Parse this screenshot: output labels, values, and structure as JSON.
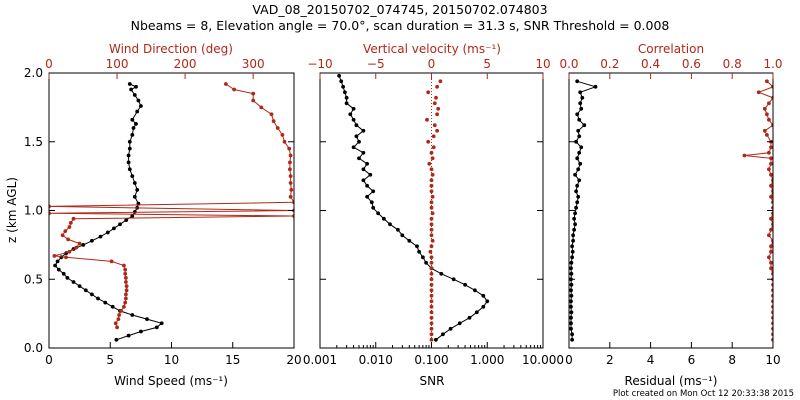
{
  "title_line1": "VAD_08_20150702_074745, 20150702.074803",
  "title_line2": "Nbeams = 8, Elevation angle = 70.0°, scan duration = 31.3 s, SNR Threshold = 0.008",
  "footer": "Plot created on Mon Oct 12 20:33:38 2015",
  "colors": {
    "black": "#000000",
    "red": "#b02818"
  },
  "chart_data": [
    {
      "type": "line",
      "panel": "wind",
      "ylabel": "z (km AGL)",
      "ylim": [
        0,
        2
      ],
      "yticks": [
        "0.0",
        "0.5",
        "1.0",
        "1.5",
        "2.0"
      ],
      "bottom_axis": {
        "label": "Wind Speed (ms⁻¹)",
        "range": [
          0,
          20
        ],
        "ticks": [
          "0",
          "5",
          "10",
          "15",
          "20"
        ]
      },
      "top_axis": {
        "label": "Wind Direction (deg)",
        "range": [
          0,
          360
        ],
        "ticks": [
          "0",
          "100",
          "200",
          "300"
        ]
      },
      "series": [
        {
          "name": "Wind Speed",
          "axis": "bottom",
          "color": "#000000",
          "z": [
            0.06,
            0.09,
            0.12,
            0.15,
            0.18,
            0.21,
            0.24,
            0.27,
            0.3,
            0.33,
            0.36,
            0.39,
            0.42,
            0.45,
            0.48,
            0.51,
            0.54,
            0.57,
            0.6,
            0.63,
            0.66,
            0.69,
            0.72,
            0.75,
            0.78,
            0.81,
            0.84,
            0.87,
            0.9,
            0.93,
            0.96,
            0.99,
            1.02,
            1.05,
            1.1,
            1.15,
            1.2,
            1.25,
            1.3,
            1.35,
            1.4,
            1.45,
            1.5,
            1.55,
            1.6,
            1.63,
            1.66,
            1.72,
            1.76,
            1.8,
            1.84,
            1.88,
            1.9,
            1.92
          ],
          "values": [
            5.5,
            6.5,
            7.5,
            8.8,
            9.2,
            8.0,
            6.8,
            5.8,
            5.2,
            4.6,
            4.0,
            3.5,
            3.0,
            2.5,
            2.0,
            1.5,
            1.2,
            0.8,
            0.5,
            0.7,
            1.0,
            1.4,
            2.0,
            2.8,
            3.5,
            4.2,
            4.8,
            5.3,
            5.8,
            6.3,
            6.8,
            7.0,
            7.2,
            7.3,
            7.0,
            7.2,
            7.0,
            6.8,
            6.6,
            6.5,
            6.5,
            6.6,
            6.6,
            6.8,
            6.9,
            7.1,
            6.8,
            7.2,
            7.5,
            7.3,
            7.0,
            6.7,
            7.1,
            6.6
          ]
        },
        {
          "name": "Wind Direction",
          "axis": "top",
          "color": "#b02818",
          "z": [
            0.15,
            0.18,
            0.21,
            0.24,
            0.27,
            0.3,
            0.33,
            0.36,
            0.39,
            0.42,
            0.45,
            0.48,
            0.51,
            0.54,
            0.57,
            0.6,
            0.63,
            0.66,
            0.67,
            0.7,
            0.73,
            0.76,
            0.79,
            0.82,
            0.85,
            0.88,
            0.91,
            0.94,
            0.96,
            0.98,
            1.0,
            1.03,
            1.06,
            1.1,
            1.15,
            1.2,
            1.25,
            1.3,
            1.35,
            1.4,
            1.45,
            1.5,
            1.55,
            1.6,
            1.65,
            1.7,
            1.75,
            1.8,
            1.85,
            1.88,
            1.92
          ],
          "values": [
            100,
            98,
            102,
            103,
            106,
            110,
            112,
            113,
            113,
            114,
            114,
            113,
            113,
            112,
            112,
            110,
            92,
            25,
            8,
            30,
            40,
            45,
            28,
            20,
            24,
            30,
            32,
            36,
            360,
            0,
            360,
            0,
            360,
            355,
            356,
            355,
            355,
            354,
            354,
            355,
            353,
            346,
            343,
            336,
            330,
            327,
            312,
            300,
            300,
            272,
            260
          ]
        }
      ]
    },
    {
      "type": "scatter",
      "panel": "vertical",
      "bottom_axis": {
        "label": "SNR",
        "scale": "log",
        "range": [
          0.001,
          10
        ],
        "ticks": [
          "0.001",
          "0.010",
          "0.100",
          "1.000",
          "10.000"
        ]
      },
      "top_axis": {
        "label": "Vertical velocity (ms⁻¹)",
        "range": [
          -10,
          10
        ],
        "ticks": [
          "−10",
          "−5",
          "0",
          "5",
          "10"
        ]
      },
      "series": [
        {
          "name": "SNR",
          "axis": "bottom",
          "color": "#000000",
          "z": [
            0.06,
            0.1,
            0.14,
            0.18,
            0.22,
            0.26,
            0.3,
            0.34,
            0.38,
            0.42,
            0.46,
            0.5,
            0.54,
            0.58,
            0.62,
            0.66,
            0.7,
            0.74,
            0.78,
            0.82,
            0.86,
            0.9,
            0.94,
            0.98,
            1.02,
            1.06,
            1.1,
            1.14,
            1.18,
            1.22,
            1.26,
            1.3,
            1.34,
            1.38,
            1.42,
            1.46,
            1.5,
            1.54,
            1.58,
            1.62,
            1.66,
            1.7,
            1.74,
            1.78,
            1.82,
            1.86,
            1.9,
            1.94,
            1.98
          ],
          "values": [
            0.12,
            0.16,
            0.22,
            0.32,
            0.48,
            0.65,
            0.85,
            1.0,
            0.85,
            0.6,
            0.4,
            0.25,
            0.15,
            0.1,
            0.08,
            0.07,
            0.06,
            0.055,
            0.04,
            0.03,
            0.025,
            0.018,
            0.014,
            0.011,
            0.009,
            0.0085,
            0.007,
            0.009,
            0.007,
            0.006,
            0.008,
            0.006,
            0.007,
            0.005,
            0.006,
            0.004,
            0.005,
            0.0045,
            0.006,
            0.0045,
            0.004,
            0.0035,
            0.004,
            0.003,
            0.003,
            0.0028,
            0.0026,
            0.0024,
            0.0022
          ]
        },
        {
          "name": "Vertical velocity",
          "axis": "top",
          "color": "#b02818",
          "z": [
            0.06,
            0.1,
            0.14,
            0.18,
            0.22,
            0.26,
            0.3,
            0.34,
            0.38,
            0.42,
            0.46,
            0.5,
            0.54,
            0.58,
            0.62,
            0.66,
            0.7,
            0.74,
            0.78,
            0.82,
            0.86,
            0.9,
            0.94,
            0.98,
            1.02,
            1.06,
            1.1,
            1.14,
            1.18,
            1.22,
            1.26,
            1.3,
            1.34,
            1.38,
            1.42,
            1.46,
            1.5,
            1.54,
            1.58,
            1.62,
            1.66,
            1.7,
            1.74,
            1.78,
            1.82,
            1.86,
            1.9,
            1.94
          ],
          "values": [
            0,
            0,
            0,
            0,
            0,
            0,
            0,
            0,
            0,
            0,
            0,
            0,
            0,
            0,
            0,
            0,
            -0.1,
            0,
            0.1,
            0,
            0,
            0,
            0,
            0.1,
            0,
            0,
            0.1,
            0,
            0,
            0,
            0.1,
            0,
            -0.2,
            0.1,
            0,
            0.2,
            -0.3,
            0.2,
            0.5,
            0.3,
            -0.4,
            0.5,
            0.6,
            0.3,
            0.4,
            -0.3,
            0.5,
            0.8
          ]
        }
      ]
    },
    {
      "type": "line",
      "panel": "quality",
      "bottom_axis": {
        "label": "Residual (ms⁻¹)",
        "range": [
          0,
          10
        ],
        "ticks": [
          "0",
          "2",
          "4",
          "6",
          "8",
          "10"
        ]
      },
      "top_axis": {
        "label": "Correlation",
        "range": [
          0,
          1
        ],
        "ticks": [
          "0.0",
          "0.2",
          "0.4",
          "0.6",
          "0.8",
          "1.0"
        ]
      },
      "series": [
        {
          "name": "Residual",
          "axis": "bottom",
          "color": "#000000",
          "z": [
            0.06,
            0.1,
            0.14,
            0.18,
            0.22,
            0.26,
            0.3,
            0.34,
            0.38,
            0.42,
            0.46,
            0.5,
            0.54,
            0.58,
            0.62,
            0.66,
            0.7,
            0.74,
            0.78,
            0.82,
            0.86,
            0.9,
            0.94,
            0.98,
            1.02,
            1.06,
            1.1,
            1.14,
            1.18,
            1.22,
            1.26,
            1.3,
            1.34,
            1.38,
            1.42,
            1.46,
            1.5,
            1.54,
            1.58,
            1.62,
            1.66,
            1.7,
            1.74,
            1.78,
            1.82,
            1.86,
            1.9,
            1.94
          ],
          "values": [
            0.15,
            0.15,
            0.1,
            0.1,
            0.1,
            0.12,
            0.1,
            0.1,
            0.12,
            0.1,
            0.12,
            0.1,
            0.12,
            0.1,
            0.12,
            0.15,
            0.18,
            0.15,
            0.2,
            0.2,
            0.25,
            0.3,
            0.25,
            0.3,
            0.35,
            0.4,
            0.45,
            0.35,
            0.4,
            0.5,
            0.3,
            0.45,
            0.55,
            0.4,
            0.5,
            0.6,
            0.35,
            0.5,
            0.45,
            0.75,
            0.5,
            0.4,
            0.6,
            0.55,
            0.65,
            0.55,
            1.3,
            0.4
          ]
        },
        {
          "name": "Correlation",
          "axis": "top",
          "color": "#b02818",
          "z": [
            0.06,
            0.1,
            0.14,
            0.18,
            0.22,
            0.26,
            0.3,
            0.34,
            0.38,
            0.42,
            0.46,
            0.5,
            0.54,
            0.58,
            0.62,
            0.66,
            0.7,
            0.74,
            0.78,
            0.82,
            0.86,
            0.9,
            0.94,
            0.98,
            1.02,
            1.06,
            1.1,
            1.14,
            1.18,
            1.22,
            1.26,
            1.3,
            1.34,
            1.38,
            1.4,
            1.42,
            1.46,
            1.5,
            1.55,
            1.58,
            1.62,
            1.66,
            1.7,
            1.74,
            1.78,
            1.82,
            1.86,
            1.9,
            1.94
          ],
          "values": [
            1.0,
            1.0,
            1.0,
            1.0,
            1.0,
            1.0,
            1.0,
            1.0,
            1.0,
            1.0,
            1.0,
            1.0,
            1.0,
            0.99,
            0.99,
            0.98,
            0.99,
            0.99,
            1.0,
            0.98,
            0.99,
            1.0,
            0.99,
            1.0,
            1.0,
            1.0,
            0.99,
            1.0,
            0.99,
            1.0,
            0.99,
            0.98,
            0.99,
            0.99,
            0.86,
            0.98,
            0.99,
            0.99,
            0.97,
            0.96,
            1.0,
            0.98,
            0.97,
            0.96,
            0.98,
            1.0,
            0.93,
            1.0,
            0.97
          ]
        }
      ]
    }
  ]
}
